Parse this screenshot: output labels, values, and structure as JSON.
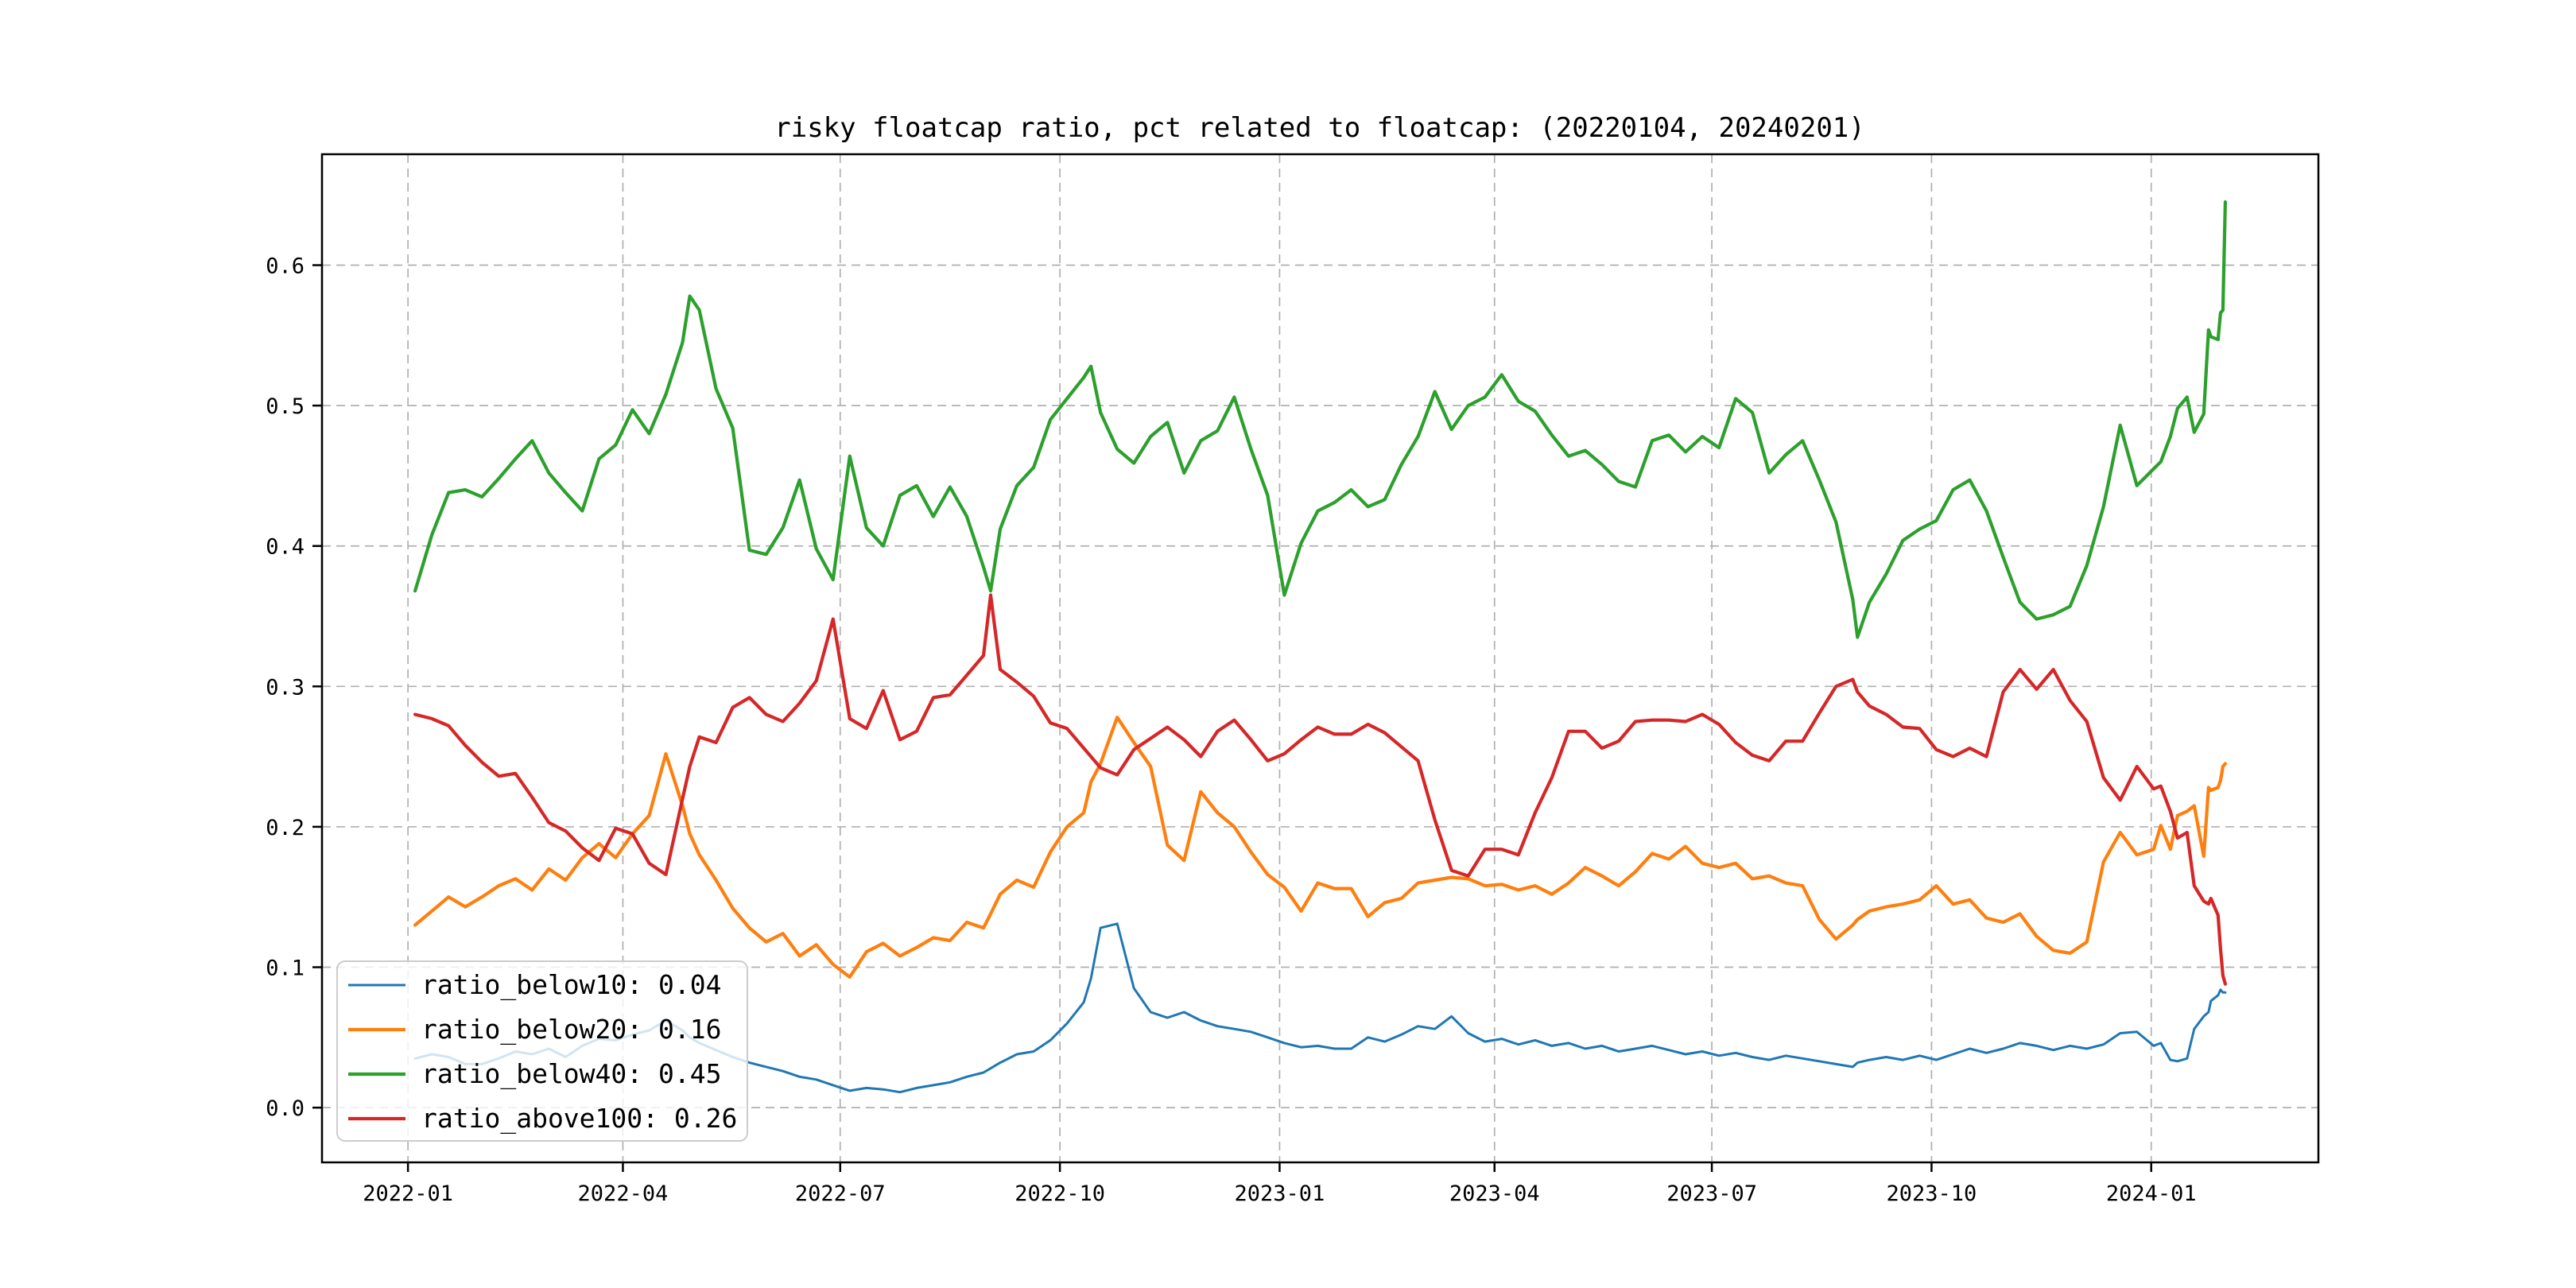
{
  "title": "risky floatcap ratio, pct related to floatcap: (20220104, 20240201)",
  "chart_data": {
    "type": "line",
    "title": "risky floatcap ratio, pct related to floatcap: (20220104, 20240201)",
    "xlabel": "",
    "ylabel": "",
    "grid": true,
    "legend_position": "lower left",
    "x_range": [
      "2021-11-26",
      "2024-03-11"
    ],
    "y_range": [
      -0.039,
      0.679
    ],
    "y_ticks": [
      0.0,
      0.1,
      0.2,
      0.3,
      0.4,
      0.5,
      0.6
    ],
    "y_tick_labels": [
      "0.0",
      "0.1",
      "0.2",
      "0.3",
      "0.4",
      "0.5",
      "0.6"
    ],
    "x_ticks": [
      "2022-01-01",
      "2022-04-01",
      "2022-07-01",
      "2022-10-01",
      "2023-01-01",
      "2023-04-01",
      "2023-07-01",
      "2023-10-01",
      "2024-01-01"
    ],
    "x_tick_labels": [
      "2022-01",
      "2022-04",
      "2022-07",
      "2022-10",
      "2023-01",
      "2023-04",
      "2023-07",
      "2023-10",
      "2024-01"
    ],
    "x": [
      "2022-01-04",
      "2022-01-11",
      "2022-01-18",
      "2022-01-25",
      "2022-02-01",
      "2022-02-08",
      "2022-02-15",
      "2022-02-22",
      "2022-03-01",
      "2022-03-08",
      "2022-03-15",
      "2022-03-22",
      "2022-03-29",
      "2022-04-05",
      "2022-04-12",
      "2022-04-19",
      "2022-04-26",
      "2022-04-29",
      "2022-05-03",
      "2022-05-10",
      "2022-05-17",
      "2022-05-24",
      "2022-05-31",
      "2022-06-07",
      "2022-06-14",
      "2022-06-21",
      "2022-06-28",
      "2022-07-05",
      "2022-07-12",
      "2022-07-19",
      "2022-07-26",
      "2022-08-02",
      "2022-08-09",
      "2022-08-16",
      "2022-08-23",
      "2022-08-30",
      "2022-09-02",
      "2022-09-06",
      "2022-09-13",
      "2022-09-20",
      "2022-09-27",
      "2022-10-04",
      "2022-10-11",
      "2022-10-14",
      "2022-10-18",
      "2022-10-25",
      "2022-11-01",
      "2022-11-08",
      "2022-11-15",
      "2022-11-22",
      "2022-11-29",
      "2022-12-06",
      "2022-12-13",
      "2022-12-20",
      "2022-12-27",
      "2023-01-03",
      "2023-01-10",
      "2023-01-17",
      "2023-01-24",
      "2023-01-31",
      "2023-02-07",
      "2023-02-14",
      "2023-02-21",
      "2023-02-28",
      "2023-03-07",
      "2023-03-14",
      "2023-03-21",
      "2023-03-28",
      "2023-04-04",
      "2023-04-11",
      "2023-04-18",
      "2023-04-25",
      "2023-05-02",
      "2023-05-09",
      "2023-05-16",
      "2023-05-23",
      "2023-05-30",
      "2023-06-06",
      "2023-06-13",
      "2023-06-20",
      "2023-06-27",
      "2023-07-04",
      "2023-07-11",
      "2023-07-18",
      "2023-07-25",
      "2023-08-01",
      "2023-08-08",
      "2023-08-15",
      "2023-08-22",
      "2023-08-29",
      "2023-08-31",
      "2023-09-05",
      "2023-09-12",
      "2023-09-19",
      "2023-09-26",
      "2023-10-03",
      "2023-10-10",
      "2023-10-17",
      "2023-10-24",
      "2023-10-31",
      "2023-11-07",
      "2023-11-14",
      "2023-11-21",
      "2023-11-28",
      "2023-12-05",
      "2023-12-12",
      "2023-12-19",
      "2023-12-26",
      "2024-01-02",
      "2024-01-05",
      "2024-01-09",
      "2024-01-12",
      "2024-01-16",
      "2024-01-19",
      "2024-01-23",
      "2024-01-25",
      "2024-01-26",
      "2024-01-29",
      "2024-01-30",
      "2024-01-31",
      "2024-02-01"
    ],
    "series": [
      {
        "name": "ratio_below10",
        "legend_label": "ratio_below10: 0.04",
        "color": "#1f77b4",
        "line_width": 3,
        "values": [
          0.035,
          0.038,
          0.036,
          0.031,
          0.031,
          0.035,
          0.04,
          0.038,
          0.042,
          0.036,
          0.044,
          0.049,
          0.048,
          0.052,
          0.055,
          0.062,
          0.055,
          0.05,
          0.046,
          0.041,
          0.036,
          0.032,
          0.029,
          0.026,
          0.022,
          0.02,
          0.016,
          0.012,
          0.014,
          0.013,
          0.011,
          0.014,
          0.016,
          0.018,
          0.022,
          0.025,
          0.028,
          0.032,
          0.038,
          0.04,
          0.048,
          0.06,
          0.075,
          0.092,
          0.128,
          0.131,
          0.085,
          0.068,
          0.064,
          0.068,
          0.062,
          0.058,
          0.056,
          0.054,
          0.05,
          0.046,
          0.043,
          0.044,
          0.042,
          0.042,
          0.05,
          0.047,
          0.052,
          0.058,
          0.056,
          0.065,
          0.053,
          0.047,
          0.049,
          0.045,
          0.048,
          0.044,
          0.046,
          0.042,
          0.044,
          0.04,
          0.042,
          0.044,
          0.041,
          0.038,
          0.04,
          0.037,
          0.039,
          0.036,
          0.034,
          0.037,
          0.035,
          0.033,
          0.031,
          0.029,
          0.032,
          0.034,
          0.036,
          0.034,
          0.037,
          0.034,
          0.038,
          0.042,
          0.039,
          0.042,
          0.046,
          0.044,
          0.041,
          0.044,
          0.042,
          0.045,
          0.053,
          0.054,
          0.044,
          0.046,
          0.034,
          0.033,
          0.035,
          0.056,
          0.065,
          0.068,
          0.076,
          0.08,
          0.084,
          0.082,
          0.082
        ]
      },
      {
        "name": "ratio_below20",
        "legend_label": "ratio_below20: 0.16",
        "color": "#ff7f0e",
        "line_width": 4.2,
        "values": [
          0.13,
          0.14,
          0.15,
          0.143,
          0.15,
          0.158,
          0.163,
          0.155,
          0.17,
          0.162,
          0.178,
          0.188,
          0.178,
          0.195,
          0.208,
          0.252,
          0.215,
          0.195,
          0.18,
          0.162,
          0.142,
          0.128,
          0.118,
          0.124,
          0.108,
          0.116,
          0.102,
          0.093,
          0.111,
          0.117,
          0.108,
          0.114,
          0.121,
          0.119,
          0.132,
          0.128,
          0.138,
          0.152,
          0.162,
          0.157,
          0.182,
          0.2,
          0.21,
          0.232,
          0.245,
          0.278,
          0.26,
          0.243,
          0.187,
          0.176,
          0.225,
          0.21,
          0.2,
          0.182,
          0.166,
          0.157,
          0.14,
          0.16,
          0.156,
          0.156,
          0.136,
          0.146,
          0.149,
          0.16,
          0.162,
          0.164,
          0.163,
          0.158,
          0.159,
          0.155,
          0.158,
          0.152,
          0.16,
          0.171,
          0.165,
          0.158,
          0.168,
          0.181,
          0.177,
          0.186,
          0.174,
          0.171,
          0.174,
          0.163,
          0.165,
          0.16,
          0.158,
          0.134,
          0.12,
          0.13,
          0.134,
          0.14,
          0.143,
          0.145,
          0.148,
          0.158,
          0.145,
          0.148,
          0.135,
          0.132,
          0.138,
          0.122,
          0.112,
          0.11,
          0.118,
          0.175,
          0.196,
          0.18,
          0.184,
          0.201,
          0.184,
          0.208,
          0.211,
          0.215,
          0.179,
          0.228,
          0.226,
          0.228,
          0.233,
          0.243,
          0.245
        ]
      },
      {
        "name": "ratio_below40",
        "legend_label": "ratio_below40: 0.45",
        "color": "#2ca02c",
        "line_width": 4.2,
        "values": [
          0.368,
          0.408,
          0.438,
          0.44,
          0.435,
          0.448,
          0.462,
          0.475,
          0.452,
          0.438,
          0.425,
          0.462,
          0.472,
          0.497,
          0.48,
          0.508,
          0.545,
          0.578,
          0.568,
          0.512,
          0.484,
          0.397,
          0.394,
          0.413,
          0.447,
          0.398,
          0.376,
          0.464,
          0.413,
          0.4,
          0.436,
          0.443,
          0.421,
          0.442,
          0.421,
          0.385,
          0.368,
          0.412,
          0.443,
          0.456,
          0.49,
          0.505,
          0.52,
          0.528,
          0.495,
          0.469,
          0.459,
          0.478,
          0.488,
          0.452,
          0.475,
          0.482,
          0.506,
          0.469,
          0.436,
          0.365,
          0.402,
          0.425,
          0.431,
          0.44,
          0.428,
          0.433,
          0.458,
          0.478,
          0.51,
          0.483,
          0.5,
          0.506,
          0.522,
          0.503,
          0.496,
          0.479,
          0.464,
          0.468,
          0.458,
          0.446,
          0.442,
          0.475,
          0.479,
          0.467,
          0.478,
          0.47,
          0.505,
          0.495,
          0.452,
          0.465,
          0.475,
          0.447,
          0.417,
          0.362,
          0.335,
          0.36,
          0.38,
          0.404,
          0.412,
          0.418,
          0.44,
          0.447,
          0.425,
          0.392,
          0.36,
          0.348,
          0.351,
          0.357,
          0.386,
          0.428,
          0.486,
          0.443,
          0.455,
          0.46,
          0.478,
          0.498,
          0.506,
          0.481,
          0.494,
          0.554,
          0.549,
          0.547,
          0.566,
          0.568,
          0.645
        ]
      },
      {
        "name": "ratio_above100",
        "legend_label": "ratio_above100: 0.26",
        "color": "#d62728",
        "line_width": 4.2,
        "values": [
          0.28,
          0.277,
          0.272,
          0.258,
          0.246,
          0.236,
          0.238,
          0.221,
          0.203,
          0.197,
          0.185,
          0.176,
          0.199,
          0.195,
          0.174,
          0.166,
          0.22,
          0.243,
          0.264,
          0.26,
          0.285,
          0.292,
          0.28,
          0.275,
          0.288,
          0.304,
          0.348,
          0.277,
          0.27,
          0.297,
          0.262,
          0.268,
          0.292,
          0.294,
          0.308,
          0.322,
          0.365,
          0.312,
          0.303,
          0.293,
          0.274,
          0.27,
          0.256,
          0.25,
          0.242,
          0.237,
          0.255,
          0.263,
          0.271,
          0.262,
          0.25,
          0.268,
          0.276,
          0.262,
          0.247,
          0.252,
          0.262,
          0.271,
          0.266,
          0.266,
          0.273,
          0.267,
          0.257,
          0.247,
          0.205,
          0.169,
          0.165,
          0.184,
          0.184,
          0.18,
          0.21,
          0.235,
          0.268,
          0.268,
          0.256,
          0.261,
          0.275,
          0.276,
          0.276,
          0.275,
          0.28,
          0.273,
          0.26,
          0.251,
          0.247,
          0.261,
          0.261,
          0.281,
          0.3,
          0.305,
          0.296,
          0.286,
          0.28,
          0.271,
          0.27,
          0.255,
          0.25,
          0.256,
          0.25,
          0.296,
          0.312,
          0.298,
          0.312,
          0.29,
          0.275,
          0.235,
          0.219,
          0.243,
          0.227,
          0.229,
          0.211,
          0.192,
          0.196,
          0.158,
          0.147,
          0.145,
          0.149,
          0.137,
          0.113,
          0.094,
          0.088
        ]
      }
    ],
    "style": {
      "grid_color": "#b0b0b0",
      "spine_color": "#000000",
      "legend_bg": "rgba(255,255,255,0.8)",
      "legend_border": "#cccccc"
    }
  }
}
